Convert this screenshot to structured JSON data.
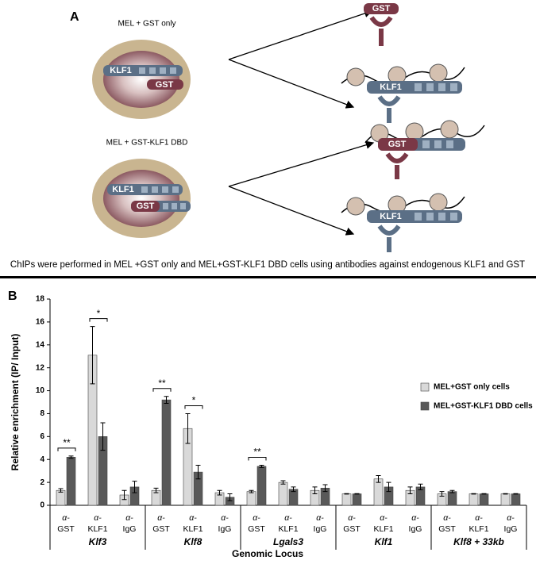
{
  "panel_a": {
    "label": "A",
    "cells": [
      {
        "title": "MEL + GST only",
        "klf1": "KLF1",
        "gst": "GST"
      },
      {
        "title": "MEL + GST-KLF1 DBD",
        "klf1": "KLF1",
        "gst": "GST"
      }
    ],
    "complexes": [
      "GST",
      "KLF1",
      "GST",
      "KLF1"
    ],
    "caption": "ChIPs were performed in MEL +GST only and MEL+GST-KLF1 DBD cells using antibodies against endogenous KLF1 and GST"
  },
  "chart_data": {
    "type": "bar",
    "panel_label": "B",
    "y_label": "Relative enrichment (IP/ Input)",
    "x_label": "Genomic Locus",
    "categories": [
      [
        "α-",
        "GST"
      ],
      [
        "α-",
        "KLF1"
      ],
      [
        "α-",
        "IgG"
      ],
      [
        "α-",
        "GST"
      ],
      [
        "α-",
        "KLF1"
      ],
      [
        "α-",
        "IgG"
      ],
      [
        "α-",
        "GST"
      ],
      [
        "α-",
        "KLF1"
      ],
      [
        "α-",
        "IgG"
      ],
      [
        "α-",
        "GST"
      ],
      [
        "α-",
        "KLF1"
      ],
      [
        "α-",
        "IgG"
      ],
      [
        "α-",
        "GST"
      ],
      [
        "α-",
        "KLF1"
      ],
      [
        "α-",
        "IgG"
      ]
    ],
    "groups": [
      "Klf3",
      "Klf8",
      "Lgals3",
      "Klf1",
      "Klf8 + 33kb"
    ],
    "series": [
      {
        "name": "MEL+GST only cells",
        "color": "#d9d9d9",
        "values": [
          1.3,
          13.1,
          0.9,
          1.3,
          6.7,
          1.1,
          1.2,
          2.0,
          1.3,
          1.0,
          2.3,
          1.3,
          1.0,
          1.0,
          1.0
        ],
        "errors": [
          0.15,
          2.5,
          0.4,
          0.2,
          1.3,
          0.2,
          0.1,
          0.15,
          0.3,
          0.02,
          0.3,
          0.3,
          0.2,
          0.02,
          0.02
        ]
      },
      {
        "name": "MEL+GST-KLF1 DBD cells",
        "color": "#595959",
        "values": [
          4.2,
          6.0,
          1.6,
          9.2,
          2.9,
          0.7,
          3.4,
          1.4,
          1.5,
          1.0,
          1.6,
          1.6,
          1.2,
          1.0,
          1.0
        ],
        "errors": [
          0.1,
          1.2,
          0.5,
          0.3,
          0.6,
          0.3,
          0.1,
          0.2,
          0.3,
          0.02,
          0.4,
          0.25,
          0.1,
          0.02,
          0.02
        ]
      }
    ],
    "significance": [
      "**",
      "*",
      null,
      "**",
      "*",
      null,
      "**",
      null,
      null,
      null,
      null,
      null,
      null,
      null,
      null
    ],
    "ylim": [
      0,
      18
    ],
    "yticks": [
      0,
      2,
      4,
      6,
      8,
      10,
      12,
      14,
      16,
      18
    ],
    "grid": false,
    "legend": "right"
  }
}
